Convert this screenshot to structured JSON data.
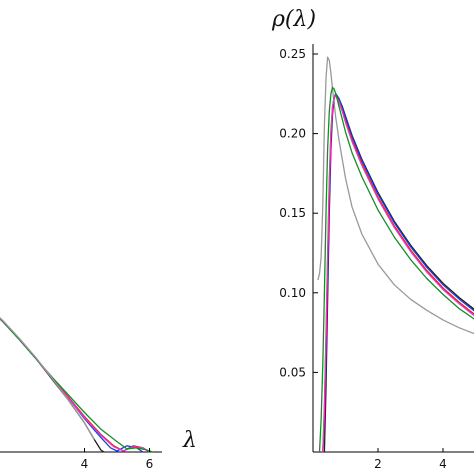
{
  "chart_data": [
    {
      "type": "line",
      "title": "",
      "xlabel": "λ",
      "ylabel": "",
      "xlim": [
        0,
        6.2
      ],
      "ylim": [
        0,
        0.25
      ],
      "x_ticks": [
        "4",
        "6"
      ],
      "grid": false,
      "legend": "none",
      "series": [
        {
          "color": "#222222",
          "x": [
            0,
            0.5,
            1.0,
            1.5,
            2.0,
            2.5,
            3.0,
            3.5,
            4.0,
            4.3,
            4.5,
            4.6
          ],
          "y": [
            0.155,
            0.15,
            0.14,
            0.125,
            0.108,
            0.09,
            0.07,
            0.05,
            0.028,
            0.012,
            0.002,
            0.0
          ]
        },
        {
          "color": "#1f3fd8",
          "x": [
            0,
            0.5,
            1.0,
            1.5,
            2.0,
            2.5,
            3.0,
            3.5,
            4.0,
            4.5,
            4.8,
            5.0,
            5.3,
            5.6,
            5.8
          ],
          "y": [
            0.155,
            0.15,
            0.14,
            0.125,
            0.108,
            0.09,
            0.071,
            0.052,
            0.032,
            0.014,
            0.004,
            0.001,
            0.006,
            0.004,
            0.0
          ]
        },
        {
          "color": "#d81f2a",
          "x": [
            0,
            0.5,
            1.0,
            1.5,
            2.0,
            2.5,
            3.0,
            3.5,
            4.0,
            4.5,
            4.9,
            5.2,
            5.5,
            5.8,
            6.0
          ],
          "y": [
            0.155,
            0.15,
            0.14,
            0.125,
            0.108,
            0.09,
            0.071,
            0.053,
            0.034,
            0.017,
            0.006,
            0.001,
            0.006,
            0.004,
            0.0
          ]
        },
        {
          "color": "#e040c0",
          "x": [
            0,
            0.5,
            1.0,
            1.5,
            2.0,
            2.5,
            3.0,
            3.5,
            4.0,
            4.5,
            4.9,
            5.2,
            5.5,
            5.8,
            6.0
          ],
          "y": [
            0.155,
            0.15,
            0.14,
            0.125,
            0.108,
            0.09,
            0.071,
            0.052,
            0.033,
            0.016,
            0.005,
            0.001,
            0.005,
            0.004,
            0.0
          ]
        },
        {
          "color": "#1a8a2a",
          "x": [
            0,
            0.5,
            1.0,
            1.5,
            2.0,
            2.5,
            3.0,
            3.5,
            4.0,
            4.5,
            5.0,
            5.3,
            5.6,
            5.9,
            6.1
          ],
          "y": [
            0.155,
            0.15,
            0.14,
            0.125,
            0.108,
            0.09,
            0.072,
            0.055,
            0.038,
            0.022,
            0.01,
            0.003,
            0.004,
            0.002,
            0.0
          ]
        },
        {
          "color": "#999999",
          "x": [
            0,
            0.5,
            1.0,
            1.5,
            2.0,
            2.5,
            3.0,
            3.5,
            4.0,
            4.3
          ],
          "y": [
            0.156,
            0.151,
            0.141,
            0.126,
            0.109,
            0.091,
            0.071,
            0.05,
            0.028,
            0.012
          ]
        }
      ]
    },
    {
      "type": "line",
      "title": "",
      "xlabel": "",
      "ylabel": "ρ(λ)",
      "xlim": [
        0,
        5
      ],
      "ylim": [
        0,
        0.25
      ],
      "y_ticks": [
        "0.05",
        "0.10",
        "0.15",
        "0.20",
        "0.25"
      ],
      "x_ticks": [
        "2",
        "4"
      ],
      "grid": false,
      "legend": "none",
      "series": [
        {
          "color": "#999999",
          "x": [
            0.15,
            0.2,
            0.25,
            0.3,
            0.35,
            0.4,
            0.45,
            0.5,
            0.55,
            0.6,
            0.7,
            0.8,
            1.0,
            1.2,
            1.5,
            2.0,
            2.5,
            3.0,
            3.5,
            4.0,
            4.5,
            5.0
          ],
          "y": [
            0.108,
            0.112,
            0.122,
            0.155,
            0.205,
            0.235,
            0.248,
            0.246,
            0.238,
            0.228,
            0.21,
            0.196,
            0.172,
            0.154,
            0.137,
            0.118,
            0.105,
            0.096,
            0.089,
            0.083,
            0.078,
            0.074
          ]
        },
        {
          "color": "#222222",
          "x": [
            0.35,
            0.4,
            0.45,
            0.5,
            0.55,
            0.6,
            0.65,
            0.7,
            0.8,
            0.9,
            1.0,
            1.2,
            1.5,
            2.0,
            2.5,
            3.0,
            3.5,
            4.0,
            4.5,
            5.0
          ],
          "y": [
            0.0,
            0.04,
            0.095,
            0.15,
            0.19,
            0.212,
            0.222,
            0.225,
            0.222,
            0.217,
            0.211,
            0.199,
            0.184,
            0.163,
            0.145,
            0.13,
            0.117,
            0.106,
            0.097,
            0.089
          ]
        },
        {
          "color": "#1f3fd8",
          "x": [
            0.3,
            0.35,
            0.4,
            0.45,
            0.5,
            0.55,
            0.6,
            0.65,
            0.7,
            0.8,
            0.9,
            1.0,
            1.2,
            1.5,
            2.0,
            2.5,
            3.0,
            3.5,
            4.0,
            4.5,
            5.0
          ],
          "y": [
            0.0,
            0.02,
            0.06,
            0.11,
            0.16,
            0.196,
            0.214,
            0.223,
            0.225,
            0.222,
            0.216,
            0.21,
            0.198,
            0.183,
            0.162,
            0.144,
            0.129,
            0.116,
            0.105,
            0.096,
            0.088
          ]
        },
        {
          "color": "#d81f2a",
          "x": [
            0.3,
            0.35,
            0.4,
            0.45,
            0.5,
            0.55,
            0.6,
            0.65,
            0.7,
            0.8,
            0.9,
            1.0,
            1.2,
            1.5,
            2.0,
            2.5,
            3.0,
            3.5,
            4.0,
            4.5,
            5.0
          ],
          "y": [
            0.0,
            0.025,
            0.07,
            0.12,
            0.168,
            0.2,
            0.216,
            0.223,
            0.224,
            0.22,
            0.214,
            0.208,
            0.196,
            0.181,
            0.16,
            0.142,
            0.127,
            0.114,
            0.103,
            0.094,
            0.086
          ]
        },
        {
          "color": "#e040c0",
          "x": [
            0.3,
            0.35,
            0.4,
            0.45,
            0.5,
            0.55,
            0.6,
            0.65,
            0.7,
            0.8,
            0.9,
            1.0,
            1.2,
            1.5,
            2.0,
            2.5,
            3.0,
            3.5,
            4.0,
            4.5,
            5.0
          ],
          "y": [
            0.0,
            0.03,
            0.075,
            0.125,
            0.172,
            0.202,
            0.217,
            0.223,
            0.224,
            0.22,
            0.214,
            0.207,
            0.195,
            0.18,
            0.159,
            0.141,
            0.126,
            0.113,
            0.102,
            0.093,
            0.085
          ]
        },
        {
          "color": "#1a8a2a",
          "x": [
            0.2,
            0.25,
            0.3,
            0.35,
            0.4,
            0.45,
            0.5,
            0.55,
            0.6,
            0.65,
            0.7,
            0.8,
            0.9,
            1.0,
            1.2,
            1.5,
            2.0,
            2.5,
            3.0,
            3.5,
            4.0,
            4.5,
            5.0
          ],
          "y": [
            0.0,
            0.02,
            0.055,
            0.1,
            0.15,
            0.19,
            0.214,
            0.225,
            0.229,
            0.228,
            0.225,
            0.217,
            0.209,
            0.201,
            0.188,
            0.173,
            0.152,
            0.135,
            0.121,
            0.109,
            0.099,
            0.09,
            0.083
          ]
        }
      ]
    }
  ]
}
